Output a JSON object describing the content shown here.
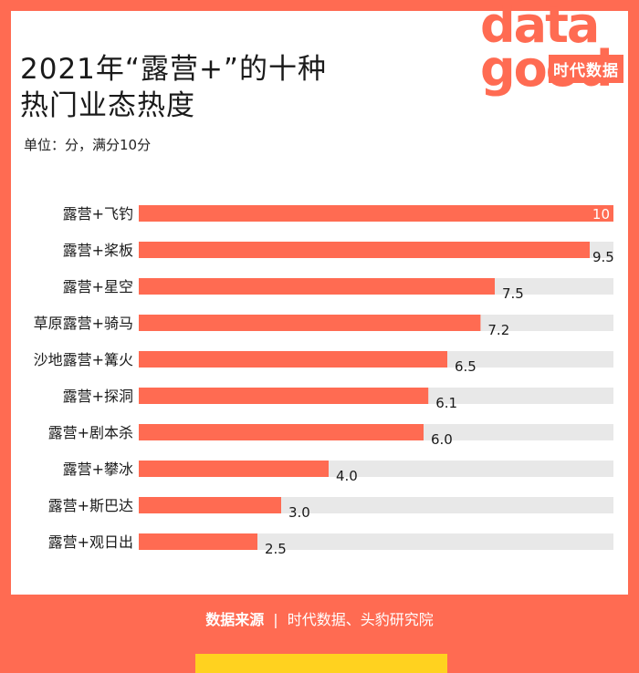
{
  "logo": {
    "wordmark": "data good",
    "badge": "时代数据"
  },
  "chart_data": {
    "type": "bar",
    "orientation": "horizontal",
    "title": "2021年“露营+”的十种\n热门业态热度",
    "subtitle": "单位：分，满分10分",
    "xlim": [
      0,
      10
    ],
    "categories": [
      "露营+飞钓",
      "露营+桨板",
      "露营+星空",
      "草原露营+骑马",
      "沙地露营+篝火",
      "露营+探洞",
      "露营+剧本杀",
      "露营+攀冰",
      "露营+斯巴达",
      "露营+观日出"
    ],
    "values": [
      10,
      9.5,
      7.5,
      7.2,
      6.5,
      6.1,
      6.0,
      4.0,
      3.0,
      2.5
    ],
    "value_labels": [
      "10",
      "9.5",
      "7.5",
      "7.2",
      "6.5",
      "6.1",
      "6.0",
      "4.0",
      "3.0",
      "2.5"
    ],
    "bar_color": "#ff6b52",
    "track_color": "#e8e8e8"
  },
  "footer": {
    "label": "数据来源",
    "separator": "|",
    "source": "时代数据、头豹研究院"
  }
}
